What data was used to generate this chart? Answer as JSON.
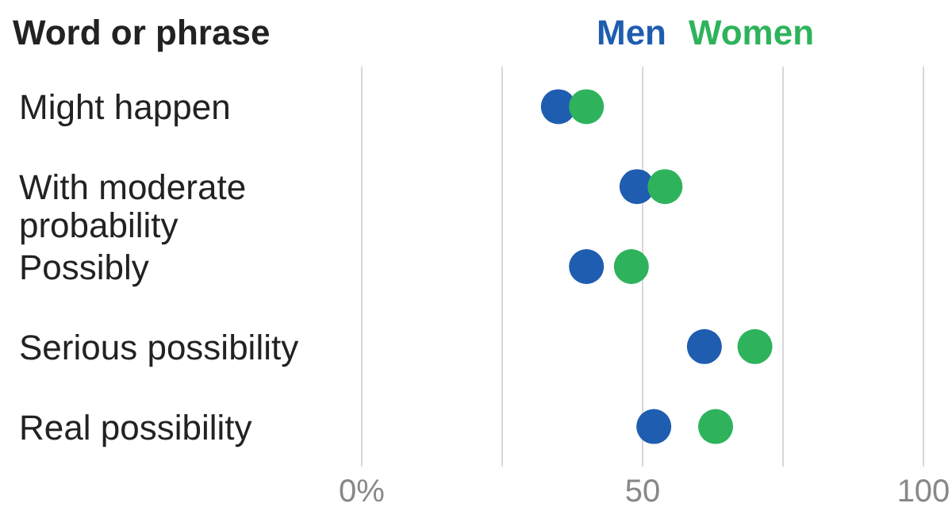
{
  "chart_data": {
    "type": "scatter",
    "ylabel": "Word or phrase",
    "categories": [
      "Might happen",
      "With moderate probability",
      "Possibly",
      "Serious possibility",
      "Real possibility"
    ],
    "orientation": "horizontal",
    "series": [
      {
        "name": "Men",
        "color": "#1f5db0",
        "values": [
          35,
          49,
          40,
          61,
          52
        ]
      },
      {
        "name": "Women",
        "color": "#2eb35c",
        "values": [
          40,
          54,
          48,
          70,
          63
        ]
      }
    ],
    "xlim": [
      0,
      100
    ],
    "xticks": [
      {
        "value": 0,
        "label": "0%"
      },
      {
        "value": 25,
        "label": null
      },
      50,
      {
        "value": 75,
        "label": null
      },
      100
    ],
    "grid": "x",
    "legend": "top",
    "marker": "circle"
  }
}
